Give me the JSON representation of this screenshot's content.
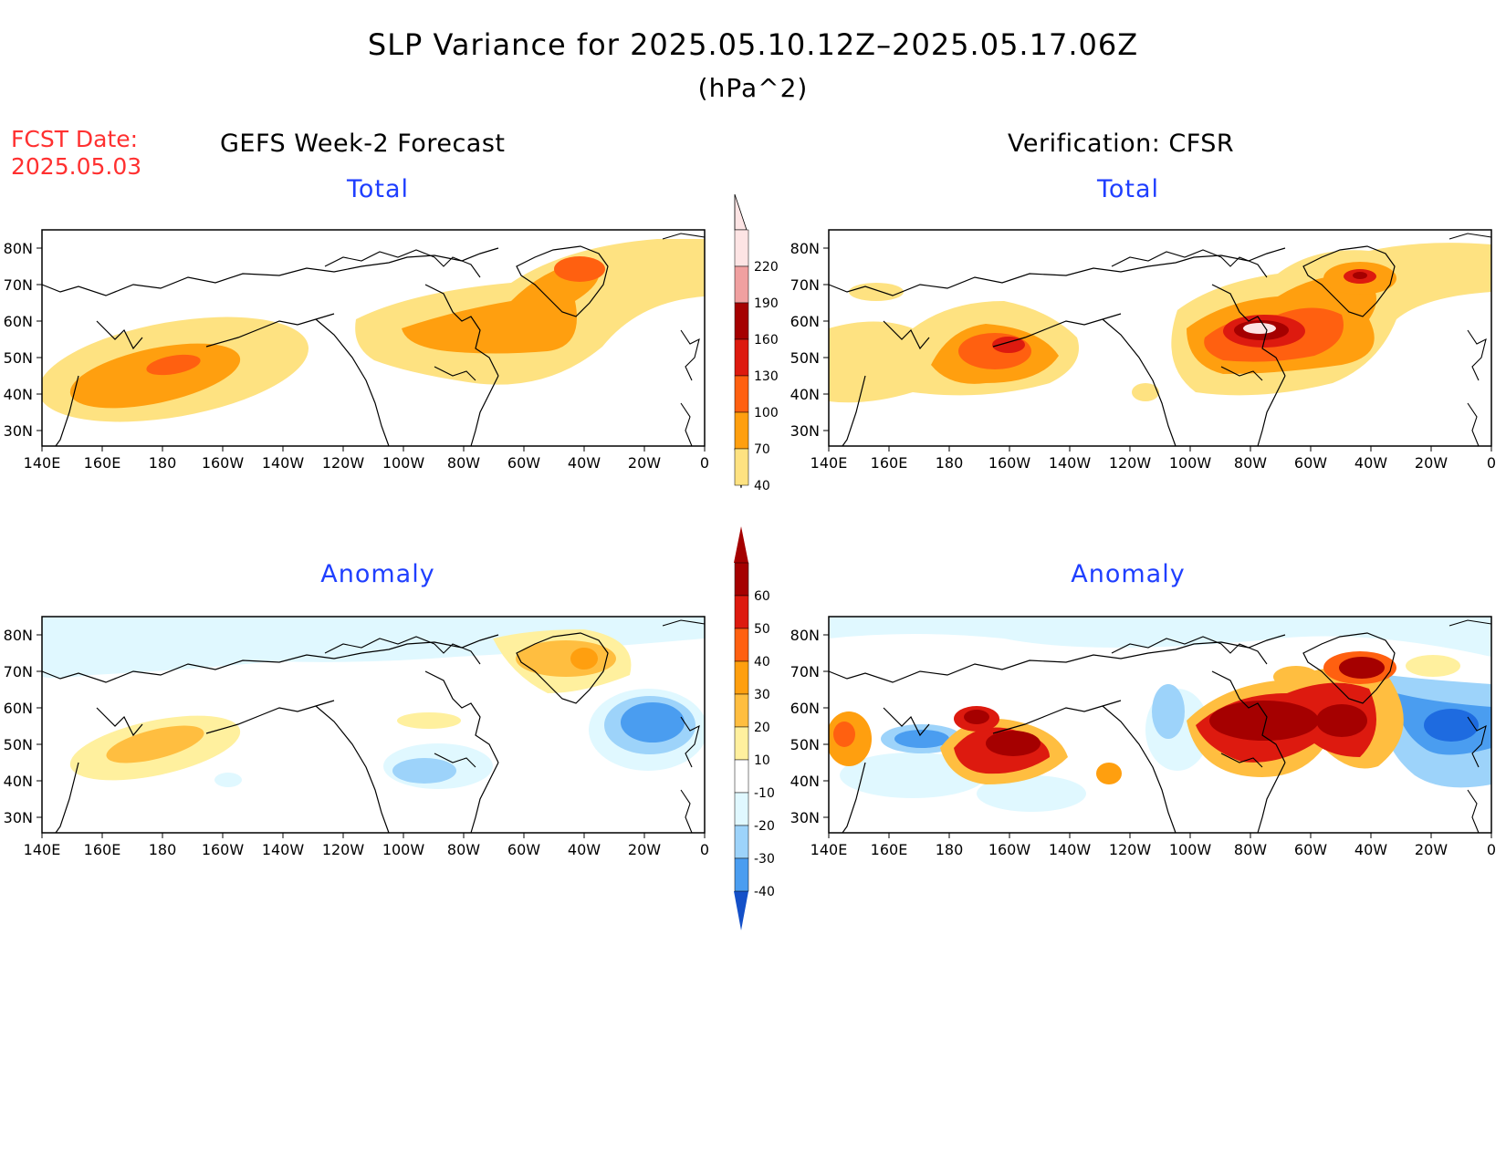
{
  "title": "SLP Variance for 2025.05.10.12Z–2025.05.17.06Z",
  "units": "(hPa^2)",
  "fcst_date": {
    "label": "FCST Date:",
    "value": "2025.05.03"
  },
  "columns": {
    "left": "GEFS Week-2 Forecast",
    "right": "Verification: CFSR"
  },
  "panels": [
    {
      "id": "gefs-total",
      "title": "Total",
      "scale": "total"
    },
    {
      "id": "cfsr-total",
      "title": "Total",
      "scale": "total"
    },
    {
      "id": "gefs-anomaly",
      "title": "Anomaly",
      "scale": "anomaly"
    },
    {
      "id": "cfsr-anomaly",
      "title": "Anomaly",
      "scale": "anomaly"
    }
  ],
  "axes": {
    "lat_labels": [
      "80N",
      "70N",
      "60N",
      "50N",
      "40N",
      "30N"
    ],
    "lon_labels": [
      "140E",
      "160E",
      "180",
      "160W",
      "140W",
      "120W",
      "100W",
      "80W",
      "60W",
      "40W",
      "20W",
      "0"
    ]
  },
  "colorbars": {
    "total": {
      "labels": [
        "220",
        "190",
        "160",
        "130",
        "100",
        "70",
        "40"
      ],
      "colors": [
        "#fde4e4",
        "#f0a0a0",
        "#a50000",
        "#dd1a0f",
        "#ff6010",
        "#ff9f0f",
        "#fee281"
      ]
    },
    "anomaly": {
      "labels": [
        "60",
        "50",
        "40",
        "30",
        "20",
        "10",
        "-10",
        "-20",
        "-30",
        "-40"
      ],
      "colors": [
        "#a50000",
        "#dd1a0f",
        "#ff6010",
        "#ff9f0f",
        "#ffbe40",
        "#fff09e",
        "#ffffff",
        "#e0f8ff",
        "#9dd3fa",
        "#4a9df0",
        "#1e6be0",
        "#1450c8"
      ]
    }
  },
  "colors": {
    "title_blue": "#1f3fff",
    "fcst_red": "#ff3030"
  }
}
